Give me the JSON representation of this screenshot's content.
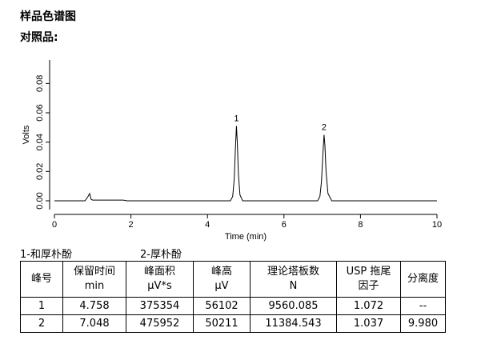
{
  "header": {
    "title": "样品色谱图",
    "subtitle": "对照品:"
  },
  "chart_data": {
    "type": "line",
    "xlabel": "Time (min)",
    "ylabel": "Volts",
    "color": "#000000",
    "x": [
      0,
      0.8,
      0.88,
      0.92,
      0.96,
      1.0,
      1.8,
      1.9,
      4.6,
      4.66,
      4.7,
      4.73,
      4.758,
      4.78,
      4.81,
      4.85,
      4.92,
      6.88,
      6.94,
      6.98,
      7.02,
      7.048,
      7.07,
      7.1,
      7.15,
      7.25,
      10
    ],
    "values": [
      0,
      0,
      0.003,
      0.005,
      0.001,
      0.0005,
      0.0005,
      0,
      0,
      0.003,
      0.015,
      0.035,
      0.051,
      0.04,
      0.018,
      0.004,
      0,
      0,
      0.003,
      0.013,
      0.033,
      0.045,
      0.038,
      0.02,
      0.005,
      0,
      0
    ],
    "xlim": [
      0,
      10
    ],
    "xticks": [
      0,
      2,
      4,
      6,
      8,
      10
    ],
    "ylim": [
      -0.006,
      0.096
    ],
    "yticks": [
      {
        "value": 0,
        "label": "0.00"
      },
      {
        "value": 0.02,
        "label": "0.02"
      },
      {
        "value": 0.04,
        "label": "0.04"
      },
      {
        "value": 0.06,
        "label": "0.06"
      },
      {
        "value": 0.08,
        "label": "0.08"
      }
    ],
    "annotations": [
      {
        "text": "1",
        "x": 4.758,
        "y": 0.051
      },
      {
        "text": "2",
        "x": 7.048,
        "y": 0.045
      }
    ]
  },
  "legend_notes": [
    "1-和厚朴酚",
    "2-厚朴酚"
  ],
  "table": {
    "header": [
      "峰号",
      "保留时间\nmin",
      "峰面积\nµV*s",
      "峰高\nµV",
      "理论塔板数\nN",
      "USP 拖尾\n因子",
      "分离度"
    ],
    "rows": [
      [
        "1",
        "4.758",
        "375354",
        "56102",
        "9560.085",
        "1.072",
        "--"
      ],
      [
        "2",
        "7.048",
        "475952",
        "50211",
        "11384.543",
        "1.037",
        "9.980"
      ]
    ]
  }
}
